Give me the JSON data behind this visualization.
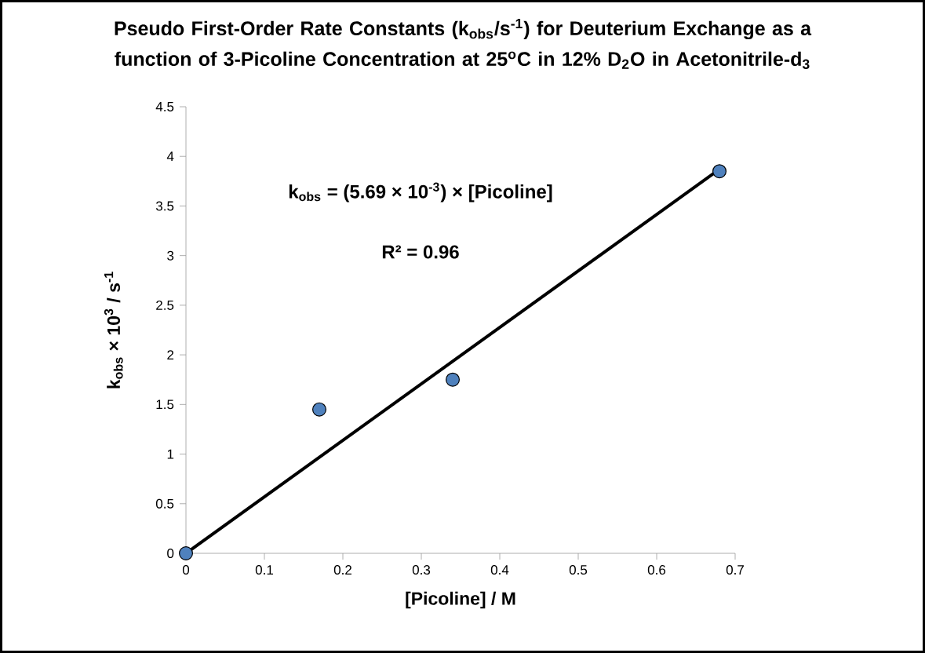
{
  "chart_data": {
    "type": "scatter",
    "title": "Pseudo First-Order Rate Constants (k$_{obs}$/s$^{-1}$) for Deuterium Exchange as a function of 3-Picoline Concentration at 25$^{o}$C in 12% D$_{2}$O in Acetonitrile-d$_{3}$",
    "xlabel": "[Picoline] / M",
    "ylabel": "k$_{obs}$ × 10$^{3}$ / s$^{-1}$",
    "annotations": [
      "k$_{obs}$ = (5.69 × 10$^{-3}$) × [Picoline]",
      "R² = 0.96"
    ],
    "series": [
      {
        "color": "#4f81bd",
        "x": [
          0,
          0.17,
          0.34,
          0.68
        ],
        "values": [
          0,
          1.45,
          1.75,
          3.85
        ],
        "marker": "circle"
      },
      {
        "type": "line",
        "color": "#000000",
        "x": [
          0,
          0.68
        ],
        "values": [
          0,
          3.87
        ],
        "marker": "none",
        "line_style": "solid"
      }
    ],
    "xlim": [
      0,
      0.7
    ],
    "xticks": [
      0,
      0.1,
      0.2,
      0.3,
      0.4,
      0.5,
      0.6,
      0.7
    ],
    "ylim": [
      0,
      4.5
    ],
    "yticks": [
      0,
      0.5,
      1,
      1.5,
      2,
      2.5,
      3,
      3.5,
      4,
      4.5
    ],
    "grid": false
  }
}
